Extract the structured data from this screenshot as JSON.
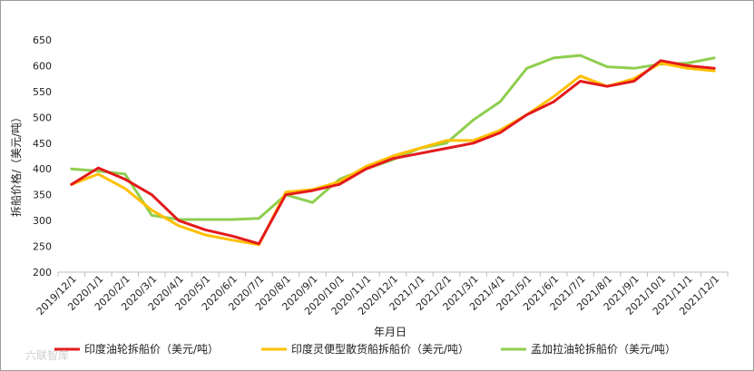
{
  "chart_data": {
    "type": "line",
    "xlabel": "年月日",
    "ylabel": "拆船价格/（美元/吨）",
    "ylim": [
      200,
      650
    ],
    "yticks": [
      200,
      250,
      300,
      350,
      400,
      450,
      500,
      550,
      600,
      650
    ],
    "grid": false,
    "legend_position": "bottom",
    "categories": [
      "2019/12/1",
      "2020/1/1",
      "2020/2/1",
      "2020/3/1",
      "2020/4/1",
      "2020/5/1",
      "2020/6/1",
      "2020/7/1",
      "2020/8/1",
      "2020/9/1",
      "2020/10/1",
      "2020/11/1",
      "2020/12/1",
      "2021/1/1",
      "2021/2/1",
      "2021/3/1",
      "2021/4/1",
      "2021/5/1",
      "2021/6/1",
      "2021/7/1",
      "2021/8/1",
      "2021/9/1",
      "2021/10/1",
      "2021/11/1",
      "2021/12/1"
    ],
    "series": [
      {
        "name": "印度油轮拆船价（美元/吨）",
        "color": "#e31a1c",
        "values": [
          370,
          402,
          380,
          350,
          300,
          282,
          270,
          255,
          350,
          358,
          370,
          400,
          420,
          430,
          440,
          450,
          470,
          505,
          530,
          570,
          560,
          570,
          610,
          600,
          595
        ]
      },
      {
        "name": "印度灵便型散货船拆船价（美元/吨）",
        "color": "#ffc000",
        "values": [
          370,
          390,
          362,
          320,
          290,
          272,
          262,
          253,
          355,
          360,
          375,
          405,
          425,
          440,
          455,
          455,
          475,
          505,
          540,
          580,
          560,
          575,
          605,
          595,
          590
        ]
      },
      {
        "name": "孟加拉油轮拆船价（美元/吨）",
        "color": "#8fce4f",
        "values": [
          400,
          396,
          390,
          310,
          302,
          302,
          302,
          304,
          350,
          335,
          380,
          400,
          418,
          440,
          450,
          495,
          530,
          595,
          615,
          620,
          598,
          595,
          603,
          605,
          615
        ]
      }
    ]
  },
  "watermark": "六联智库"
}
